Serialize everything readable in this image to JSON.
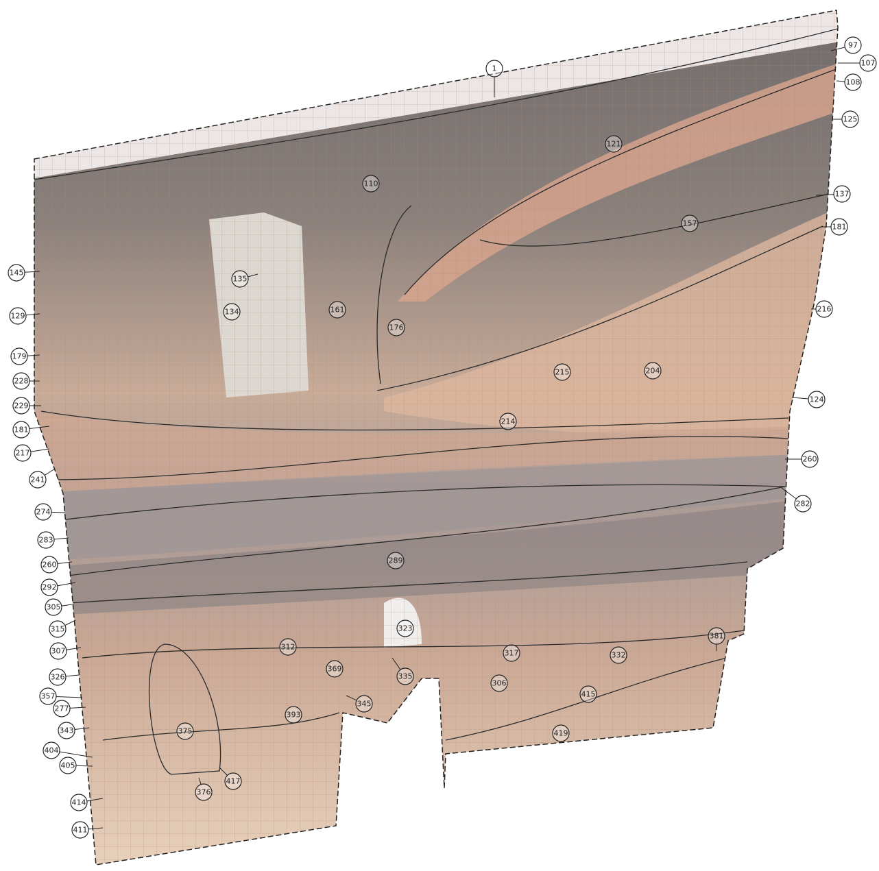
{
  "labels": [
    "1",
    "97",
    "107",
    "108",
    "125",
    "137",
    "181",
    "216",
    "124",
    "260",
    "282",
    "110",
    "121",
    "157",
    "135",
    "134",
    "161",
    "176",
    "215",
    "204",
    "214",
    "289",
    "323",
    "312",
    "369",
    "317",
    "332",
    "335",
    "306",
    "415",
    "419",
    "345",
    "393",
    "375",
    "417",
    "376",
    "381",
    "145",
    "129",
    "179",
    "228",
    "229",
    "181",
    "217",
    "241",
    "274",
    "283",
    "260",
    "292",
    "305",
    "315",
    "307",
    "326",
    "357",
    "277",
    "343",
    "404",
    "405",
    "414",
    "411"
  ]
}
